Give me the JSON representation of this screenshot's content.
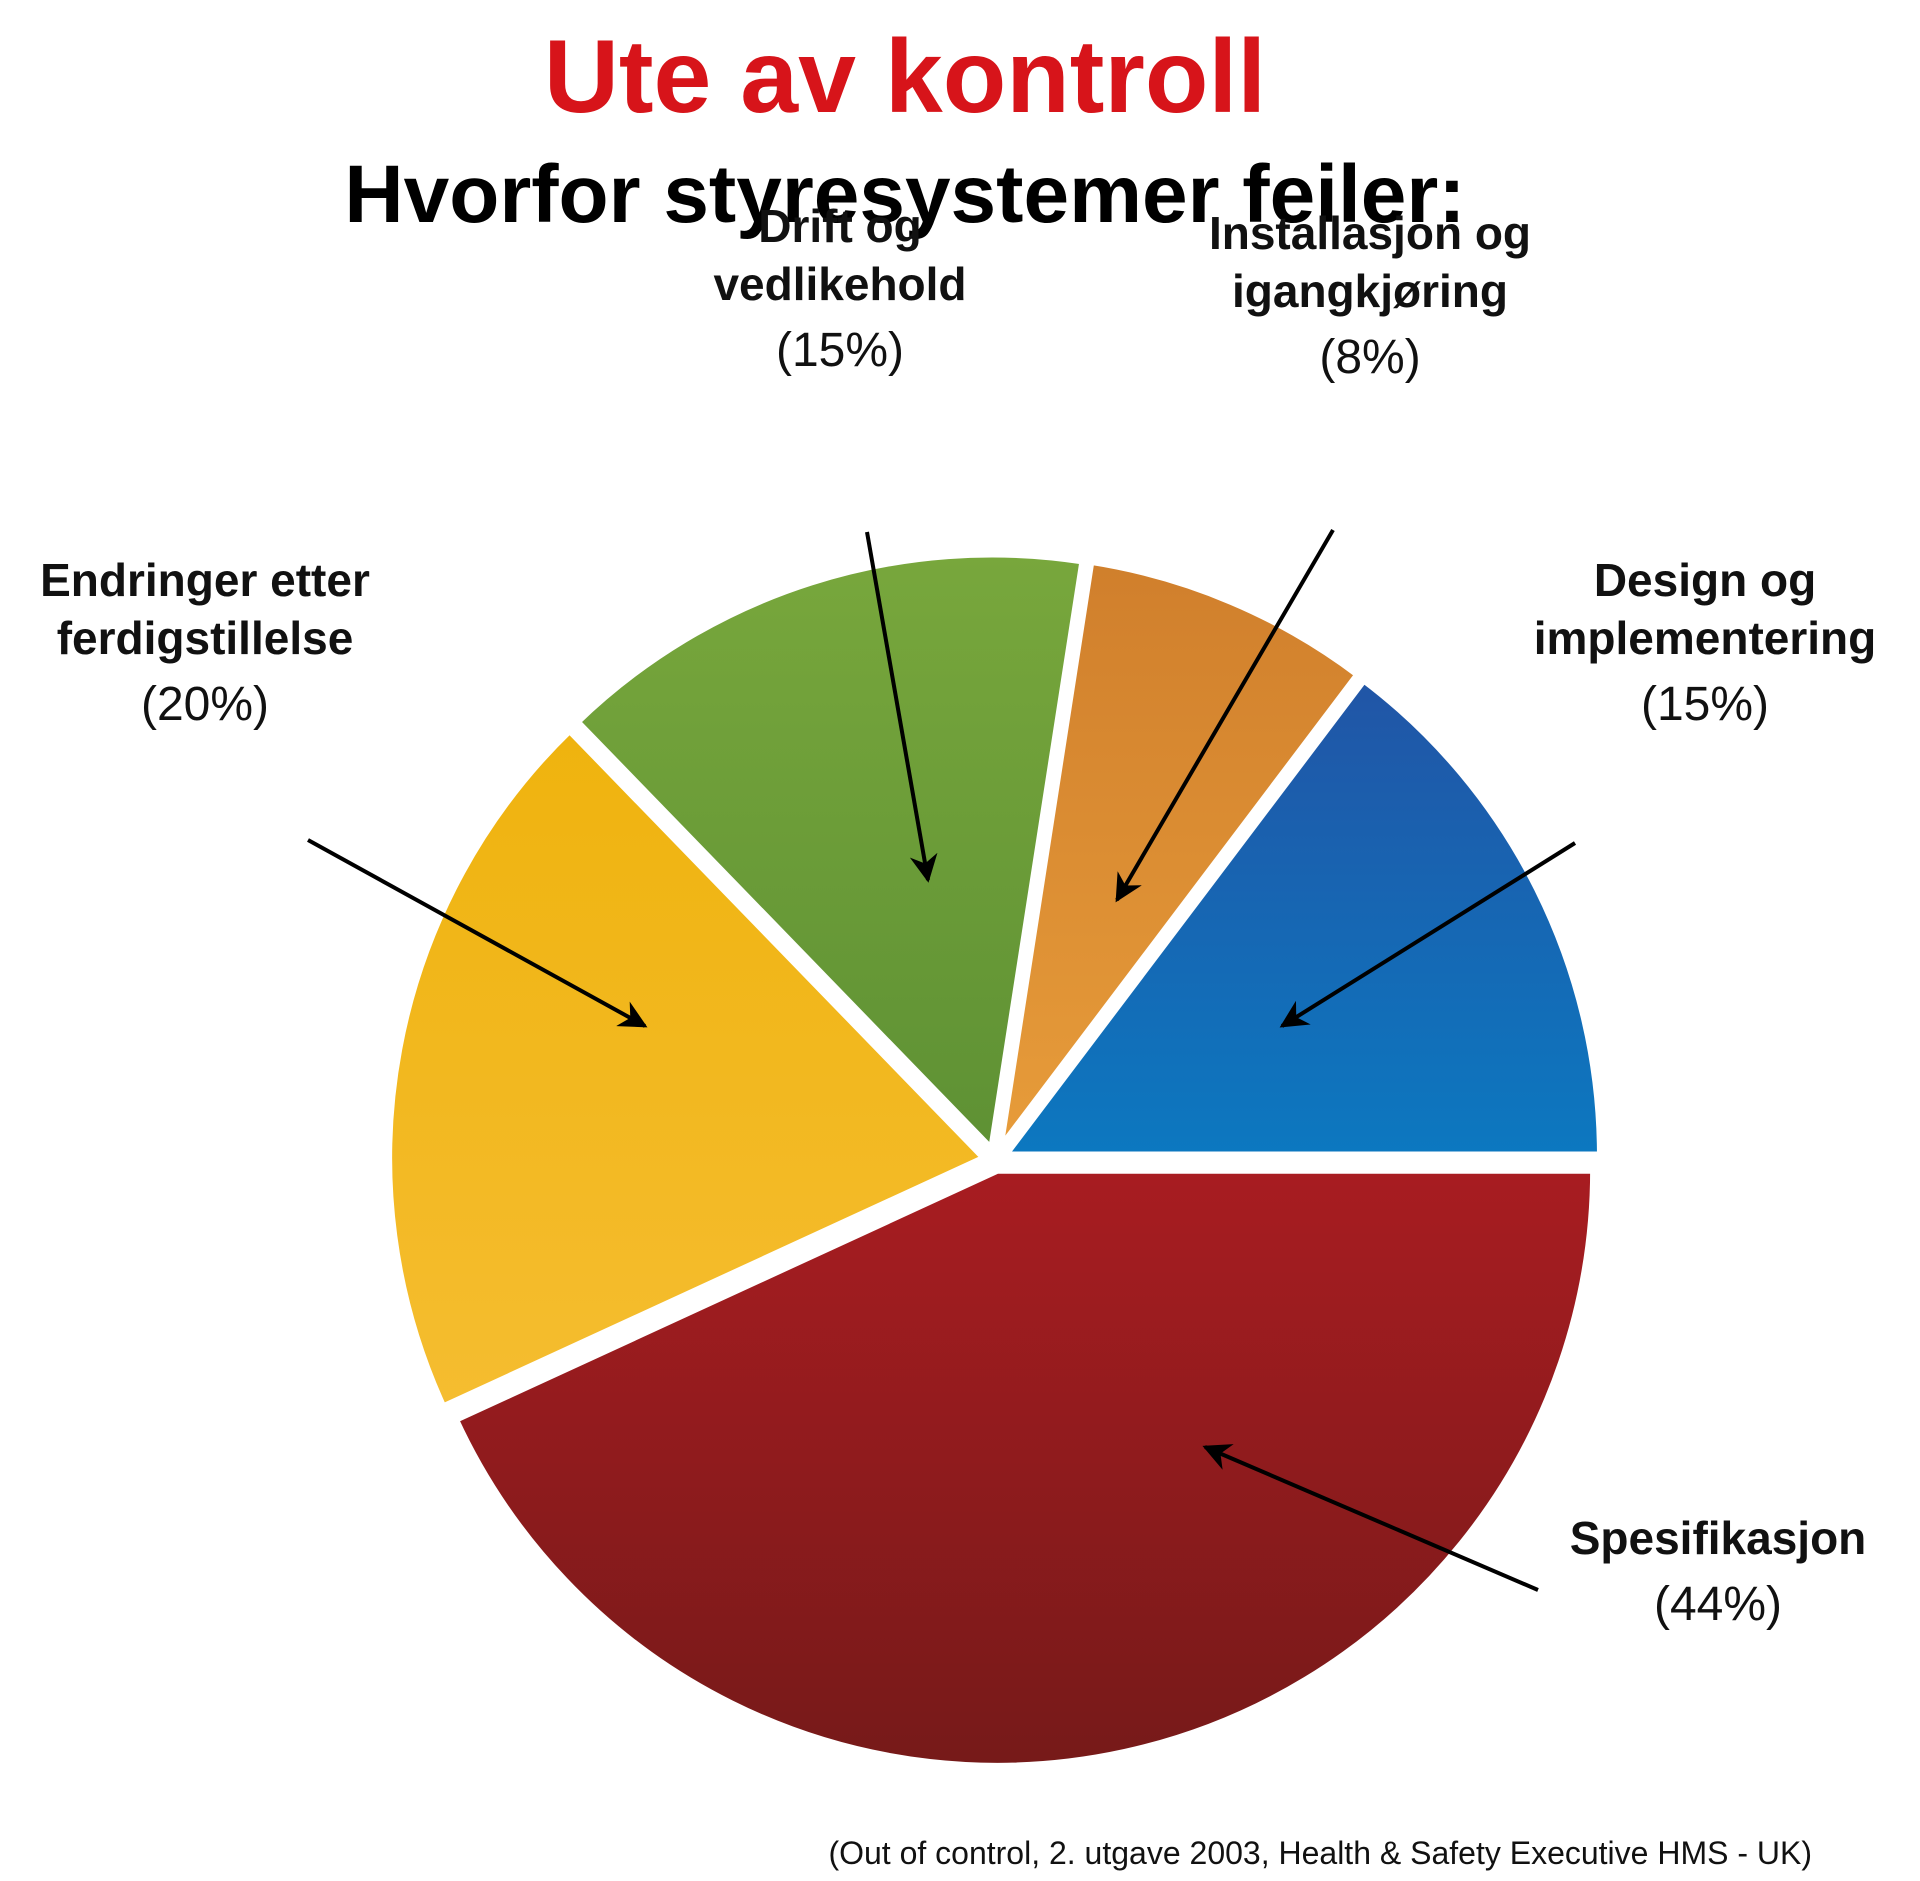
{
  "chart_data": {
    "type": "pie",
    "title": "Ute av kontroll",
    "subtitle": "Hvorfor styresystemer feiler:",
    "source": "(Out of control, 2. utgave 2003, Health & Safety Executive HMS - UK)",
    "slices": [
      {
        "label_lines": [
          "Spesifikasjon"
        ],
        "percent_text": "(44%)",
        "value": 44,
        "color_top": "#a81c21",
        "color_bottom": "#761a19"
      },
      {
        "label_lines": [
          "Endringer etter",
          "ferdigstillelse"
        ],
        "percent_text": "(20%)",
        "value": 20,
        "color_top": "#efb30e",
        "color_bottom": "#f5bd30"
      },
      {
        "label_lines": [
          "Drift og",
          "vedlikehold"
        ],
        "percent_text": "(15%)",
        "value": 15,
        "color_top": "#78a73c",
        "color_bottom": "#5e9134"
      },
      {
        "label_lines": [
          "Installasjon og",
          "igangkjøring"
        ],
        "percent_text": "(8%)",
        "value": 8,
        "color_top": "#d07f2c",
        "color_bottom": "#e79c3a"
      },
      {
        "label_lines": [
          "Design og",
          "implementering"
        ],
        "percent_text": "(15%)",
        "value": 15,
        "color_top": "#2155a6",
        "color_bottom": "#0c78c0"
      }
    ]
  }
}
